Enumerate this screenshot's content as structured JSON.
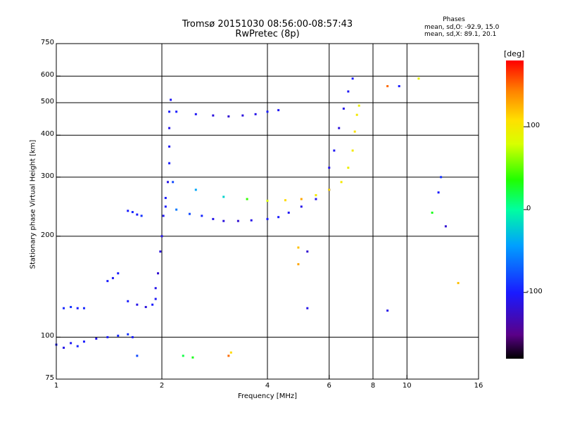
{
  "colors": {
    "background": "#ffffff",
    "axes": "#000000",
    "grid": "#000000"
  },
  "header": {
    "title_line1": "Tromsø 20151030 08:56:00-08:57:43",
    "title_line2": "RwPretec (8p)"
  },
  "phases_box": {
    "title": "Phases",
    "o_line": "mean, sd,O: -92.9, 15.0",
    "x_line": "mean, sd,X: 89.1, 20.1"
  },
  "colorbar": {
    "unit_label": "[deg]",
    "ticks": [
      {
        "value": 100,
        "label": "100"
      },
      {
        "value": 0,
        "label": "0"
      },
      {
        "value": -100,
        "label": "-100"
      }
    ],
    "range": [
      -180,
      180
    ],
    "scale": "rainbow (black-purple-blue-cyan-green-yellow-orange-red)"
  },
  "chart_data": {
    "type": "scatter",
    "title": "Tromsø 20151030 08:56:00-08:57:43",
    "subtitle": "RwPretec (8p)",
    "xlabel": "Frequency [MHz]",
    "ylabel": "Stationary phase Virtual Height [km]",
    "x_scale": "log2",
    "y_scale": "log",
    "xlim": [
      1,
      16
    ],
    "ylim": [
      75,
      750
    ],
    "grid": true,
    "x_ticks": [
      {
        "value": 1,
        "label": "1"
      },
      {
        "value": 2,
        "label": "2"
      },
      {
        "value": 4,
        "label": "4"
      },
      {
        "value": 6,
        "label": "6"
      },
      {
        "value": 8,
        "label": "8"
      },
      {
        "value": 10,
        "label": "10"
      },
      {
        "value": 16,
        "label": "16"
      }
    ],
    "y_ticks": [
      {
        "value": 75,
        "label": "75"
      },
      {
        "value": 100,
        "label": "100"
      },
      {
        "value": 200,
        "label": "200"
      },
      {
        "value": 300,
        "label": "300"
      },
      {
        "value": 400,
        "label": "400"
      },
      {
        "value": 500,
        "label": "500"
      },
      {
        "value": 600,
        "label": "600"
      },
      {
        "value": 750,
        "label": "750"
      }
    ],
    "x_gridlines": [
      2,
      4,
      6,
      8,
      10
    ],
    "y_gridlines": [
      100,
      200,
      300,
      400,
      500,
      600
    ],
    "color_scale": {
      "quantity": "phase",
      "unit": "deg",
      "min": -180,
      "max": 180
    },
    "series": [
      {
        "points": [
          [
            1.0,
            95,
            -100
          ],
          [
            1.05,
            93,
            -110
          ],
          [
            1.1,
            96,
            -105
          ],
          [
            1.15,
            94,
            -95
          ],
          [
            1.2,
            97,
            -100
          ],
          [
            1.3,
            99,
            -110
          ],
          [
            1.4,
            100,
            -100
          ],
          [
            1.5,
            101,
            -95
          ],
          [
            1.6,
            102,
            -90
          ],
          [
            1.65,
            100,
            -100
          ],
          [
            1.7,
            88,
            -80
          ]
        ]
      },
      {
        "points": [
          [
            1.05,
            122,
            -95
          ],
          [
            1.1,
            123,
            -90
          ],
          [
            1.15,
            122,
            -100
          ],
          [
            1.2,
            122,
            -95
          ]
        ]
      },
      {
        "points": [
          [
            1.4,
            147,
            -100
          ],
          [
            1.45,
            150,
            -105
          ],
          [
            1.5,
            155,
            -100
          ]
        ]
      },
      {
        "points": [
          [
            1.6,
            128,
            -100
          ],
          [
            1.7,
            125,
            -110
          ],
          [
            1.8,
            123,
            -115
          ],
          [
            1.88,
            125,
            -100
          ],
          [
            1.92,
            130,
            -105
          ]
        ]
      },
      {
        "points": [
          [
            1.6,
            238,
            -100
          ],
          [
            1.65,
            236,
            -95
          ],
          [
            1.7,
            232,
            -100
          ],
          [
            1.75,
            230,
            -90
          ]
        ]
      },
      {
        "points": [
          [
            1.92,
            140,
            -110
          ],
          [
            1.95,
            155,
            -120
          ],
          [
            1.98,
            180,
            -115
          ],
          [
            2.0,
            200,
            -110
          ],
          [
            2.02,
            230,
            -105
          ],
          [
            2.05,
            260,
            -100
          ],
          [
            2.08,
            290,
            -110
          ],
          [
            2.1,
            330,
            -100
          ],
          [
            2.1,
            370,
            -105
          ],
          [
            2.1,
            420,
            -110
          ],
          [
            2.1,
            470,
            -100
          ],
          [
            2.12,
            510,
            -105
          ]
        ]
      },
      {
        "points": [
          [
            2.05,
            245,
            -100
          ],
          [
            2.2,
            240,
            -60
          ],
          [
            2.4,
            233,
            -80
          ],
          [
            2.6,
            230,
            -95
          ],
          [
            2.8,
            225,
            -110
          ],
          [
            3.0,
            222,
            -115
          ],
          [
            3.3,
            222,
            -120
          ],
          [
            3.6,
            223,
            -110
          ],
          [
            4.0,
            225,
            -100
          ],
          [
            4.3,
            228,
            -100
          ],
          [
            4.6,
            235,
            -105
          ],
          [
            5.0,
            245,
            -110
          ],
          [
            5.5,
            258,
            -110
          ],
          [
            6.0,
            275,
            -115
          ]
        ]
      },
      {
        "points": [
          [
            2.15,
            290,
            -80
          ],
          [
            2.5,
            275,
            -40
          ],
          [
            3.0,
            262,
            -20
          ],
          [
            3.5,
            258,
            40
          ],
          [
            4.0,
            255,
            80
          ],
          [
            4.5,
            256,
            110
          ],
          [
            5.0,
            258,
            130
          ],
          [
            5.5,
            265,
            100
          ],
          [
            6.0,
            275,
            110
          ],
          [
            6.5,
            290,
            100
          ],
          [
            6.8,
            320,
            95
          ],
          [
            7.0,
            360,
            100
          ],
          [
            7.1,
            410,
            105
          ],
          [
            7.2,
            460,
            100
          ],
          [
            7.3,
            490,
            95
          ]
        ]
      },
      {
        "points": [
          [
            2.2,
            470,
            -100
          ],
          [
            2.5,
            462,
            -105
          ],
          [
            2.8,
            458,
            -115
          ],
          [
            3.1,
            455,
            -120
          ],
          [
            3.4,
            458,
            -115
          ],
          [
            3.7,
            462,
            -110
          ],
          [
            4.0,
            470,
            -100
          ],
          [
            4.3,
            475,
            -105
          ]
        ]
      },
      {
        "points": [
          [
            6.0,
            320,
            -110
          ],
          [
            6.2,
            360,
            -105
          ],
          [
            6.4,
            420,
            -115
          ],
          [
            6.6,
            480,
            -110
          ],
          [
            6.8,
            540,
            -105
          ],
          [
            7.0,
            590,
            -100
          ]
        ]
      },
      {
        "points": [
          [
            2.3,
            88,
            20
          ],
          [
            2.45,
            87,
            30
          ],
          [
            3.1,
            88,
            150
          ],
          [
            3.15,
            90,
            110
          ],
          [
            4.9,
            185,
            120
          ],
          [
            4.9,
            165,
            130
          ],
          [
            5.2,
            180,
            -120
          ],
          [
            5.2,
            122,
            -110
          ],
          [
            8.8,
            560,
            150
          ],
          [
            8.8,
            120,
            -110
          ],
          [
            9.5,
            560,
            -100
          ],
          [
            10.8,
            590,
            90
          ],
          [
            12.5,
            300,
            -90
          ],
          [
            12.3,
            270,
            -100
          ],
          [
            11.8,
            235,
            30
          ],
          [
            12.9,
            214,
            -120
          ],
          [
            14.0,
            145,
            120
          ]
        ]
      }
    ]
  }
}
